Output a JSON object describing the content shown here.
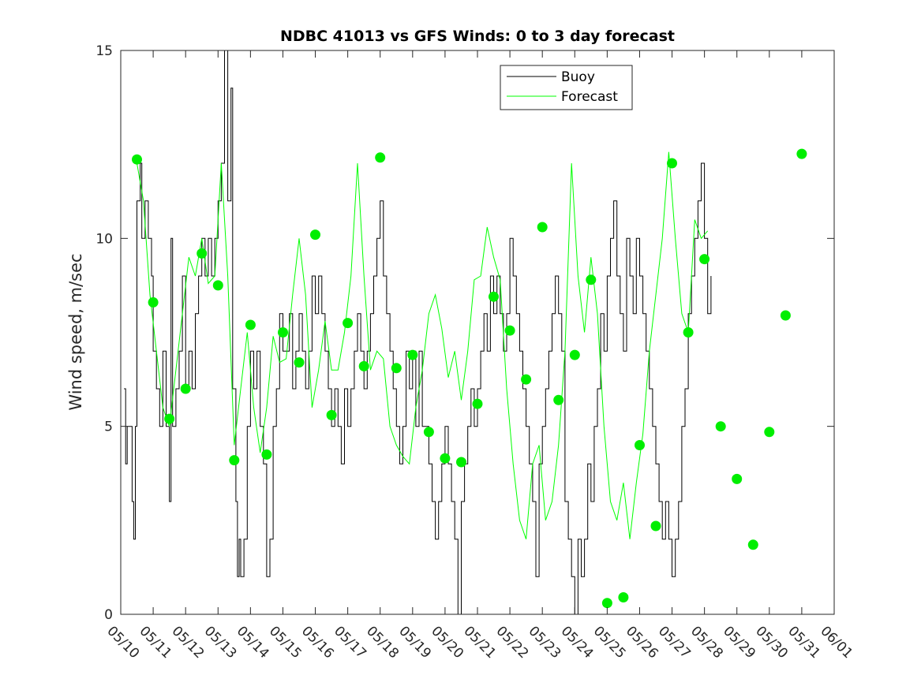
{
  "chart_data": {
    "type": "line",
    "title": "NDBC 41013 vs GFS Winds: 0 to 3 day forecast",
    "xlabel": "",
    "ylabel": "Wind speed, m/sec",
    "xlim": [
      "05/10",
      "06/01"
    ],
    "ylim": [
      0,
      15
    ],
    "yticks": [
      0,
      5,
      10,
      15
    ],
    "xtick_labels": [
      "05/10",
      "05/11",
      "05/12",
      "05/13",
      "05/14",
      "05/15",
      "05/16",
      "05/17",
      "05/18",
      "05/19",
      "05/20",
      "05/21",
      "05/22",
      "05/23",
      "05/24",
      "05/25",
      "05/26",
      "05/27",
      "05/28",
      "05/29",
      "05/30",
      "05/31",
      "06/01"
    ],
    "grid": false,
    "legend": {
      "position": "top-right",
      "entries": [
        "Buoy",
        "Forecast"
      ]
    },
    "colors": {
      "buoy": "#000000",
      "forecast": "#00ff00",
      "marker": "#00ee00",
      "axis": "#262626"
    },
    "series": [
      {
        "name": "Buoy",
        "x_unit": "day offset from 05/10 00Z",
        "points": [
          [
            0.1,
            6
          ],
          [
            0.15,
            4
          ],
          [
            0.2,
            5
          ],
          [
            0.3,
            5
          ],
          [
            0.35,
            3
          ],
          [
            0.4,
            2
          ],
          [
            0.45,
            5
          ],
          [
            0.5,
            11
          ],
          [
            0.6,
            12
          ],
          [
            0.65,
            10
          ],
          [
            0.75,
            11
          ],
          [
            0.85,
            10
          ],
          [
            0.95,
            9
          ],
          [
            1.0,
            7
          ],
          [
            1.1,
            6
          ],
          [
            1.2,
            5
          ],
          [
            1.3,
            7
          ],
          [
            1.4,
            5
          ],
          [
            1.5,
            3
          ],
          [
            1.55,
            10
          ],
          [
            1.6,
            5
          ],
          [
            1.7,
            6
          ],
          [
            1.8,
            7
          ],
          [
            1.9,
            9
          ],
          [
            2.0,
            6
          ],
          [
            2.1,
            7
          ],
          [
            2.2,
            6
          ],
          [
            2.3,
            8
          ],
          [
            2.4,
            9
          ],
          [
            2.5,
            10
          ],
          [
            2.6,
            9
          ],
          [
            2.7,
            10
          ],
          [
            2.8,
            9
          ],
          [
            2.9,
            10
          ],
          [
            3.0,
            11
          ],
          [
            3.1,
            12
          ],
          [
            3.2,
            15
          ],
          [
            3.3,
            11
          ],
          [
            3.4,
            14
          ],
          [
            3.45,
            6
          ],
          [
            3.55,
            3
          ],
          [
            3.6,
            1
          ],
          [
            3.65,
            2
          ],
          [
            3.7,
            1
          ],
          [
            3.8,
            2
          ],
          [
            3.9,
            5
          ],
          [
            4.0,
            7
          ],
          [
            4.1,
            6
          ],
          [
            4.2,
            7
          ],
          [
            4.3,
            5
          ],
          [
            4.4,
            4
          ],
          [
            4.5,
            1
          ],
          [
            4.6,
            2
          ],
          [
            4.7,
            5
          ],
          [
            4.8,
            6
          ],
          [
            4.9,
            8
          ],
          [
            5.0,
            7
          ],
          [
            5.1,
            7
          ],
          [
            5.2,
            8
          ],
          [
            5.3,
            6
          ],
          [
            5.4,
            7
          ],
          [
            5.5,
            8
          ],
          [
            5.6,
            7
          ],
          [
            5.7,
            6
          ],
          [
            5.8,
            7
          ],
          [
            5.9,
            9
          ],
          [
            6.0,
            8
          ],
          [
            6.1,
            9
          ],
          [
            6.2,
            8
          ],
          [
            6.3,
            7
          ],
          [
            6.4,
            6
          ],
          [
            6.5,
            5
          ],
          [
            6.6,
            6
          ],
          [
            6.7,
            5
          ],
          [
            6.8,
            4
          ],
          [
            6.9,
            6
          ],
          [
            7.0,
            5
          ],
          [
            7.1,
            6
          ],
          [
            7.2,
            7
          ],
          [
            7.3,
            8
          ],
          [
            7.4,
            7
          ],
          [
            7.5,
            6
          ],
          [
            7.6,
            7
          ],
          [
            7.7,
            8
          ],
          [
            7.8,
            9
          ],
          [
            7.9,
            10
          ],
          [
            8.0,
            11
          ],
          [
            8.1,
            9
          ],
          [
            8.2,
            8
          ],
          [
            8.3,
            7
          ],
          [
            8.4,
            6
          ],
          [
            8.5,
            5
          ],
          [
            8.6,
            4
          ],
          [
            8.7,
            5
          ],
          [
            8.8,
            7
          ],
          [
            8.9,
            6
          ],
          [
            9.0,
            7
          ],
          [
            9.1,
            5
          ],
          [
            9.2,
            7
          ],
          [
            9.3,
            5
          ],
          [
            9.5,
            4
          ],
          [
            9.6,
            3
          ],
          [
            9.7,
            2
          ],
          [
            9.8,
            3
          ],
          [
            9.9,
            4
          ],
          [
            10.0,
            5
          ],
          [
            10.1,
            4
          ],
          [
            10.2,
            3
          ],
          [
            10.3,
            2
          ],
          [
            10.4,
            0
          ],
          [
            10.5,
            3
          ],
          [
            10.6,
            4
          ],
          [
            10.7,
            5
          ],
          [
            10.8,
            6
          ],
          [
            10.9,
            5
          ],
          [
            11.0,
            6
          ],
          [
            11.1,
            7
          ],
          [
            11.2,
            8
          ],
          [
            11.3,
            7
          ],
          [
            11.4,
            9
          ],
          [
            11.5,
            8
          ],
          [
            11.6,
            9
          ],
          [
            11.7,
            8
          ],
          [
            11.8,
            7
          ],
          [
            11.9,
            8
          ],
          [
            12.0,
            10
          ],
          [
            12.1,
            9
          ],
          [
            12.2,
            8
          ],
          [
            12.3,
            7
          ],
          [
            12.4,
            6
          ],
          [
            12.5,
            5
          ],
          [
            12.6,
            4
          ],
          [
            12.7,
            3
          ],
          [
            12.8,
            1
          ],
          [
            12.9,
            4
          ],
          [
            13.0,
            5
          ],
          [
            13.1,
            6
          ],
          [
            13.2,
            7
          ],
          [
            13.3,
            8
          ],
          [
            13.4,
            9
          ],
          [
            13.5,
            8
          ],
          [
            13.6,
            7
          ],
          [
            13.7,
            3
          ],
          [
            13.8,
            2
          ],
          [
            13.9,
            1
          ],
          [
            14.0,
            0
          ],
          [
            14.1,
            2
          ],
          [
            14.2,
            1
          ],
          [
            14.3,
            2
          ],
          [
            14.4,
            4
          ],
          [
            14.5,
            3
          ],
          [
            14.6,
            5
          ],
          [
            14.7,
            6
          ],
          [
            14.8,
            8
          ],
          [
            14.9,
            7
          ],
          [
            15.0,
            9
          ],
          [
            15.1,
            10
          ],
          [
            15.2,
            11
          ],
          [
            15.3,
            9
          ],
          [
            15.4,
            8
          ],
          [
            15.5,
            7
          ],
          [
            15.6,
            10
          ],
          [
            15.7,
            9
          ],
          [
            15.8,
            8
          ],
          [
            15.9,
            10
          ],
          [
            16.0,
            9
          ],
          [
            16.1,
            8
          ],
          [
            16.2,
            7
          ],
          [
            16.3,
            6
          ],
          [
            16.4,
            5
          ],
          [
            16.5,
            4
          ],
          [
            16.6,
            3
          ],
          [
            16.7,
            2
          ],
          [
            16.8,
            3
          ],
          [
            16.9,
            2
          ],
          [
            17.0,
            1
          ],
          [
            17.1,
            2
          ],
          [
            17.2,
            3
          ],
          [
            17.3,
            5
          ],
          [
            17.4,
            6
          ],
          [
            17.5,
            8
          ],
          [
            17.6,
            9
          ],
          [
            17.7,
            10
          ],
          [
            17.8,
            11
          ],
          [
            17.9,
            12
          ],
          [
            18.0,
            10
          ],
          [
            18.1,
            8
          ],
          [
            18.2,
            9
          ]
        ]
      },
      {
        "name": "Forecast",
        "x_unit": "day offset from 05/10 00Z",
        "points": [
          [
            0.5,
            12
          ],
          [
            0.7,
            11
          ],
          [
            0.9,
            8.5
          ],
          [
            1.1,
            7
          ],
          [
            1.3,
            5.5
          ],
          [
            1.5,
            5
          ],
          [
            1.7,
            6.5
          ],
          [
            1.9,
            8
          ],
          [
            2.1,
            9.5
          ],
          [
            2.3,
            9
          ],
          [
            2.5,
            10
          ],
          [
            2.7,
            8.8
          ],
          [
            2.9,
            9
          ],
          [
            3.1,
            12
          ],
          [
            3.3,
            9
          ],
          [
            3.5,
            4.5
          ],
          [
            3.7,
            6
          ],
          [
            3.9,
            7.5
          ],
          [
            4.1,
            5.5
          ],
          [
            4.3,
            4.3
          ],
          [
            4.5,
            5.5
          ],
          [
            4.7,
            7.4
          ],
          [
            4.9,
            6.7
          ],
          [
            5.1,
            6.8
          ],
          [
            5.3,
            8.5
          ],
          [
            5.5,
            10
          ],
          [
            5.7,
            8.5
          ],
          [
            5.9,
            5.5
          ],
          [
            6.1,
            6.5
          ],
          [
            6.3,
            7.8
          ],
          [
            6.5,
            6.5
          ],
          [
            6.7,
            6.5
          ],
          [
            6.9,
            7.5
          ],
          [
            7.1,
            9
          ],
          [
            7.3,
            12
          ],
          [
            7.5,
            9
          ],
          [
            7.7,
            6.5
          ],
          [
            7.9,
            7
          ],
          [
            8.1,
            6.8
          ],
          [
            8.3,
            5
          ],
          [
            8.5,
            4.5
          ],
          [
            8.7,
            4.2
          ],
          [
            8.9,
            4
          ],
          [
            9.1,
            5.5
          ],
          [
            9.3,
            6.5
          ],
          [
            9.5,
            8
          ],
          [
            9.7,
            8.5
          ],
          [
            9.9,
            7.6
          ],
          [
            10.1,
            6.3
          ],
          [
            10.3,
            7
          ],
          [
            10.5,
            5.7
          ],
          [
            10.7,
            7
          ],
          [
            10.9,
            8.9
          ],
          [
            11.1,
            9
          ],
          [
            11.3,
            10.3
          ],
          [
            11.5,
            9.5
          ],
          [
            11.7,
            8.9
          ],
          [
            11.9,
            6
          ],
          [
            12.1,
            4
          ],
          [
            12.3,
            2.5
          ],
          [
            12.5,
            2
          ],
          [
            12.7,
            4
          ],
          [
            12.9,
            4.5
          ],
          [
            13.1,
            2.5
          ],
          [
            13.3,
            3
          ],
          [
            13.5,
            4.5
          ],
          [
            13.7,
            7
          ],
          [
            13.9,
            12
          ],
          [
            14.1,
            9
          ],
          [
            14.3,
            7.5
          ],
          [
            14.5,
            9.5
          ],
          [
            14.7,
            8
          ],
          [
            14.9,
            5
          ],
          [
            15.1,
            3
          ],
          [
            15.3,
            2.5
          ],
          [
            15.5,
            3.5
          ],
          [
            15.7,
            2
          ],
          [
            15.9,
            3.5
          ],
          [
            16.1,
            4.8
          ],
          [
            16.3,
            7
          ],
          [
            16.5,
            8.5
          ],
          [
            16.7,
            10
          ],
          [
            16.9,
            12.3
          ],
          [
            17.1,
            10
          ],
          [
            17.3,
            8
          ],
          [
            17.5,
            7.5
          ],
          [
            17.7,
            10.5
          ],
          [
            17.9,
            10
          ],
          [
            18.1,
            10.2
          ]
        ]
      },
      {
        "name": "Forecast markers",
        "x_unit": "day offset from 05/10 00Z",
        "points": [
          [
            0.5,
            12.1
          ],
          [
            1.0,
            8.3
          ],
          [
            1.5,
            5.2
          ],
          [
            2.0,
            6.0
          ],
          [
            2.5,
            9.6
          ],
          [
            3.0,
            8.75
          ],
          [
            3.5,
            4.1
          ],
          [
            4.0,
            7.7
          ],
          [
            4.5,
            4.25
          ],
          [
            5.0,
            7.5
          ],
          [
            5.5,
            6.7
          ],
          [
            6.0,
            10.1
          ],
          [
            6.5,
            5.3
          ],
          [
            7.0,
            7.75
          ],
          [
            7.5,
            6.6
          ],
          [
            8.0,
            12.15
          ],
          [
            8.5,
            6.55
          ],
          [
            9.0,
            6.9
          ],
          [
            9.5,
            4.85
          ],
          [
            10.0,
            4.15
          ],
          [
            10.5,
            4.05
          ],
          [
            11.0,
            5.6
          ],
          [
            11.5,
            8.45
          ],
          [
            12.0,
            7.55
          ],
          [
            12.5,
            6.25
          ],
          [
            13.0,
            10.3
          ],
          [
            13.5,
            5.7
          ],
          [
            14.0,
            6.9
          ],
          [
            14.5,
            8.9
          ],
          [
            15.0,
            0.3
          ],
          [
            15.5,
            0.45
          ],
          [
            16.0,
            4.5
          ],
          [
            16.5,
            2.35
          ],
          [
            17.0,
            12.0
          ],
          [
            17.5,
            7.5
          ],
          [
            18.0,
            9.45
          ],
          [
            18.5,
            5.0
          ],
          [
            19.0,
            3.6
          ],
          [
            19.5,
            1.85
          ],
          [
            20.0,
            4.85
          ],
          [
            20.5,
            7.95
          ],
          [
            21.0,
            12.25
          ]
        ]
      }
    ]
  }
}
